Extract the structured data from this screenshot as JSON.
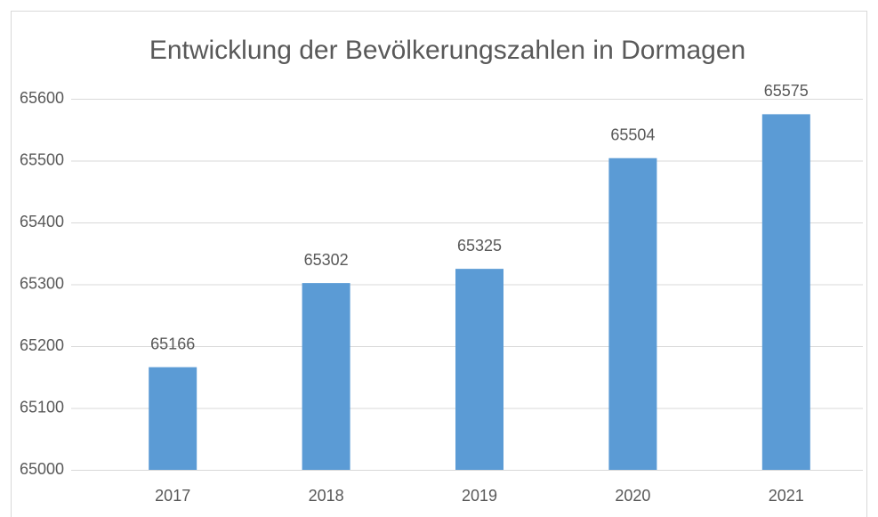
{
  "chart_data": {
    "type": "bar",
    "title": "Entwicklung der Bevölkerungszahlen in Dormagen",
    "categories": [
      "2017",
      "2018",
      "2019",
      "2020",
      "2021"
    ],
    "values": [
      65166,
      65302,
      65325,
      65504,
      65575
    ],
    "color": "#5b9bd5",
    "ylim": [
      65000,
      65600
    ],
    "yticks": [
      65000,
      65100,
      65200,
      65300,
      65400,
      65500,
      65600
    ],
    "grid": true,
    "data_labels": true
  }
}
